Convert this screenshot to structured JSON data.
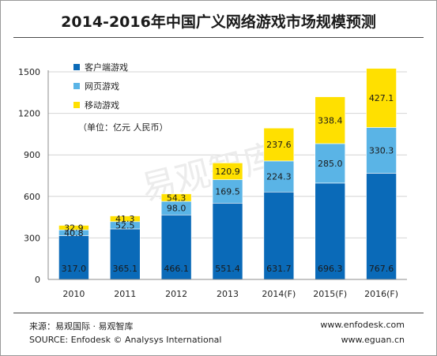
{
  "chart_data": {
    "type": "bar",
    "stacked": true,
    "title": "2014-2016年中国广义网络游戏市场规模预测",
    "unit_note": "（单位：亿元 人民币）",
    "categories": [
      "2010",
      "2011",
      "2012",
      "2013",
      "2014(F)",
      "2015(F)",
      "2016(F)"
    ],
    "series": [
      {
        "name": "客户端游戏",
        "color": "#0a6ab8",
        "values": [
          317.0,
          365.1,
          466.1,
          551.4,
          631.7,
          696.3,
          767.6
        ],
        "labels": [
          "317.0",
          "365.1",
          "466.1",
          "551.4",
          "631.7",
          "696.3",
          "767.6"
        ]
      },
      {
        "name": "网页游戏",
        "color": "#5ab4e6",
        "values": [
          40.8,
          52.5,
          98.0,
          169.5,
          224.3,
          285.0,
          330.3
        ],
        "labels": [
          "40.8",
          "52.5",
          "98.0",
          "169.5",
          "224.3",
          "285.0",
          "330.3"
        ]
      },
      {
        "name": "移动游戏",
        "color": "#ffe000",
        "values": [
          32.9,
          41.3,
          54.3,
          120.9,
          237.6,
          338.4,
          427.1
        ],
        "labels": [
          "32.9",
          "41.3",
          "54.3",
          "120.9",
          "237.6",
          "338.4",
          "427.1"
        ]
      }
    ],
    "yticks": [
      "0",
      "300",
      "600",
      "900",
      "1200",
      "1500"
    ],
    "ylim": [
      0,
      1500
    ],
    "grid": true,
    "legend_position": "top-left"
  },
  "watermark": "易观智库",
  "footer": {
    "source_cn": "来源：易观国际 · 易观智库",
    "source_en": "SOURCE: Enfodesk © Analysys International",
    "url1": "www.enfodesk.com",
    "url2": "www.eguan.cn"
  }
}
